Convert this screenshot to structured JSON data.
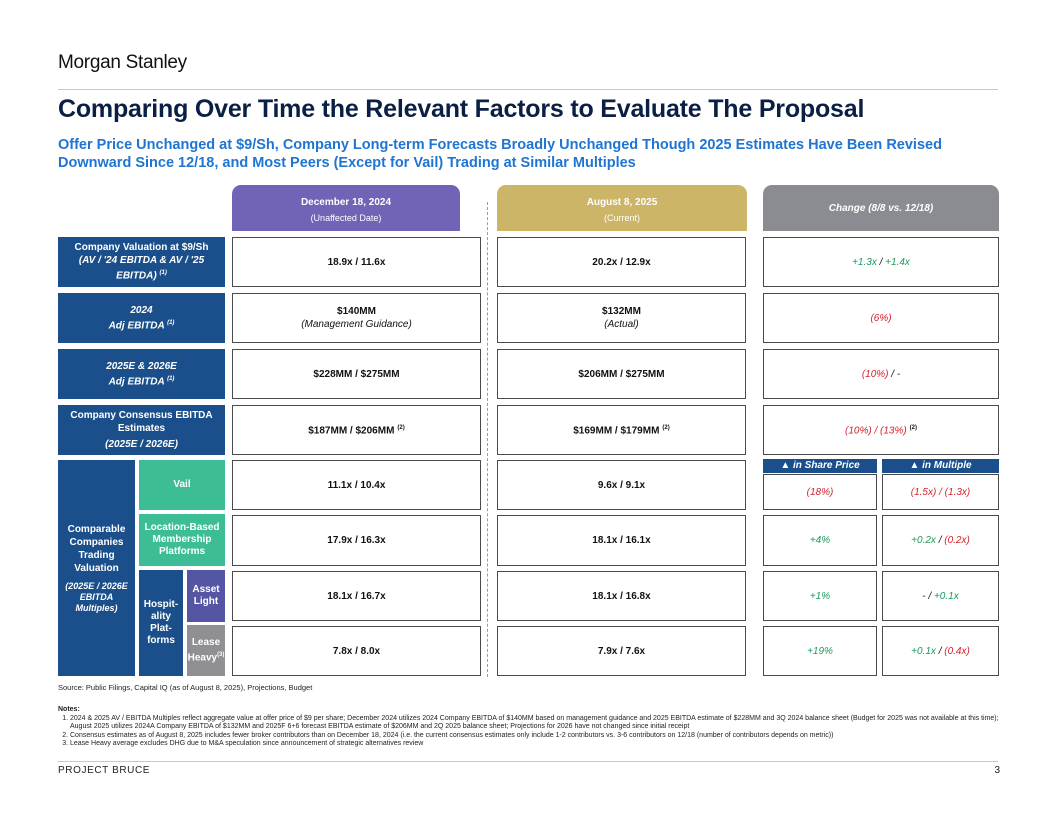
{
  "brand": "Morgan Stanley",
  "title": "Comparing Over Time the Relevant Factors to Evaluate The Proposal",
  "subtitle": "Offer Price Unchanged at $9/Sh, Company Long-term Forecasts Broadly Unchanged Though 2025 Estimates Have Been Revised Downward Since 12/18, and Most Peers (Except for Vail) Trading at Similar Multiples",
  "columns": {
    "dec": {
      "title": "December 18, 2024",
      "sub": "(Unaffected Date)"
    },
    "aug": {
      "title": "August 8, 2025",
      "sub": "(Current)"
    },
    "chg": {
      "title": "Change (8/8 vs. 12/18)"
    }
  },
  "rows": {
    "valuation": {
      "label1": "Company Valuation at $9/Sh",
      "label2": "(AV / '24 EBITDA & AV / '25 EBITDA)",
      "note": "(1)",
      "dec": "18.9x / 11.6x",
      "aug": "20.2x / 12.9x",
      "chg_a": "+1.3x",
      "chg_sep": " / ",
      "chg_b": "+1.4x"
    },
    "ebitda2024": {
      "label1": "2024",
      "label2": "Adj EBITDA",
      "note": "(1)",
      "dec": "$140MM",
      "dec_sub": "(Management Guidance)",
      "aug": "$132MM",
      "aug_sub": "(Actual)",
      "chg": "(6%)"
    },
    "ebitda2526": {
      "label1": "2025E & 2026E",
      "label2": "Adj EBITDA",
      "note": "(1)",
      "dec": "$228MM / $275MM",
      "aug": "$206MM / $275MM",
      "chg_a": "(10%)",
      "chg_b": " / -"
    },
    "consensus": {
      "label1": "Company Consensus EBITDA Estimates",
      "label2": "(2025E / 2026E)",
      "dec": "$187MM / $206MM",
      "dec_note": "(2)",
      "aug": "$169MM / $179MM",
      "aug_note": "(2)",
      "chg": "(10%) / (13%)",
      "chg_note": "(2)"
    }
  },
  "comps": {
    "label": "Comparable Companies Trading Valuation",
    "label_sub": "(2025E / 2026E EBITDA Multiples)",
    "share_price_hdr": "▲ in Share Price",
    "multiple_hdr": "▲ in Multiple",
    "vail": {
      "label": "Vail",
      "dec": "11.1x / 10.4x",
      "aug": "9.6x / 9.1x",
      "share": "(18%)",
      "mult": "(1.5x) / (1.3x)"
    },
    "location": {
      "label": "Location-Based Membership Platforms",
      "dec": "17.9x / 16.3x",
      "aug": "18.1x / 16.1x",
      "share": "+4%",
      "mult_a": "+0.2x",
      "mult_sep": " / ",
      "mult_b": "(0.2x)"
    },
    "hospitality_label": "Hospit-ality Plat-forms",
    "asset": {
      "label": "Asset Light",
      "dec": "18.1x / 16.7x",
      "aug": "18.1x / 16.8x",
      "share": "+1%",
      "mult_a": "- ",
      "mult_sep": " / ",
      "mult_b": "+0.1x"
    },
    "lease": {
      "label": "Lease Heavy",
      "note": "(3)",
      "dec": "7.8x / 8.0x",
      "aug": "7.9x / 7.6x",
      "share": "+19%",
      "mult_a": "+0.1x",
      "mult_sep": " / ",
      "mult_b": "(0.4x)"
    }
  },
  "source": "Source: Public Filings, Capital IQ (as of August 8, 2025), Projections, Budget",
  "notes": {
    "title": "Notes:",
    "items": [
      "2024 & 2025 AV / EBITDA Multiples reflect aggregate value at offer price of $9 per share; December 2024 utilizes 2024 Company EBITDA of $140MM based on management guidance and 2025 EBITDA estimate of $228MM and 3Q 2024 balance sheet (Budget for 2025 was not available at this time); August 2025 utilizes 2024A Company EBITDA of $132MM and 2025F 6+6 forecast EBITDA estimate of $206MM and 2Q 2025 balance sheet; Projections for 2026 have not changed since initial receipt",
      "Consensus estimates as of August 8, 2025 includes fewer broker contributors than on December 18, 2024 (i.e. the current consensus estimates only include 1-2 contributors vs. 3-6 contributors on 12/18 (number of contributors depends on metric))",
      "Lease Heavy average excludes DHG due to M&A speculation since announcement of strategic alternatives review"
    ]
  },
  "footer": {
    "project": "PROJECT BRUCE",
    "page": "3"
  },
  "colors": {
    "navy": "#1a4f8b",
    "title": "#0a1f44",
    "subtitle": "#1f75d1",
    "dec_header": "#7163b6",
    "aug_header": "#cdb567",
    "chg_header": "#8b8c91",
    "vail_green": "#3dbd96",
    "asset_light": "#5556a3",
    "lease_heavy": "#8f8f94",
    "positive": "#1c9a5b",
    "negative": "#d2222d"
  }
}
